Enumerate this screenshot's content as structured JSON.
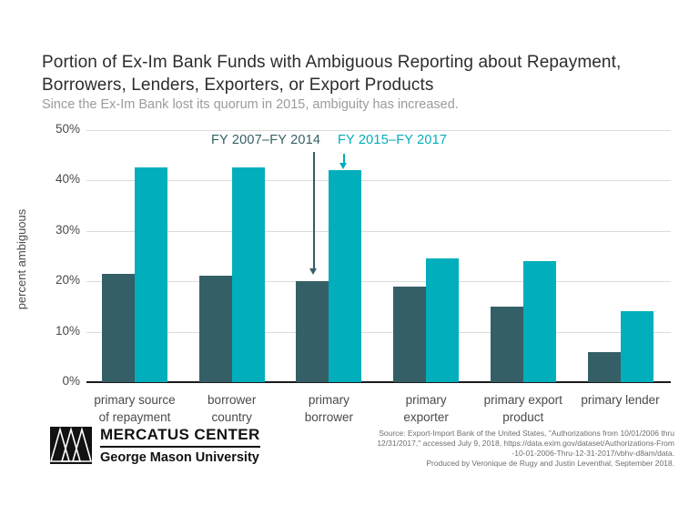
{
  "chart_data": {
    "type": "bar",
    "title": "Portion of Ex-Im Bank Funds with Ambiguous Reporting about Repayment,\nBorrowers, Lenders, Exporters, or Export Products",
    "subtitle": "Since the Ex-Im Bank lost its quorum in 2015, ambiguity has increased.",
    "ylabel": "percent ambiguous",
    "xlabel": "",
    "ylim": [
      0,
      50
    ],
    "ytick_values": [
      0,
      10,
      20,
      30,
      40,
      50
    ],
    "ytick_labels": [
      "0%",
      "10%",
      "20%",
      "30%",
      "40%",
      "50%"
    ],
    "grid": true,
    "legend_position": "annotations above plot with arrows pointing to the primary borrower bars",
    "categories": [
      "primary source\nof repayment",
      "borrower\ncountry",
      "primary\nborrower",
      "primary\nexporter",
      "primary export\nproduct",
      "primary lender"
    ],
    "series": [
      {
        "name": "FY 2007–FY 2014",
        "color": "#355F66",
        "values": [
          21.5,
          21,
          20,
          19,
          15,
          6
        ]
      },
      {
        "name": "FY 2015–FY 2017",
        "color": "#00AEBC",
        "values": [
          42.5,
          42.5,
          42,
          24.5,
          24,
          14
        ]
      }
    ]
  },
  "colors": {
    "axis_line": "#1A1A1A",
    "gridline": "#DCDCDC",
    "title_text": "#2D2D2D",
    "subtitle_text": "#9B9B9B",
    "axis_text": "#4A4A4A",
    "source_text": "#6E6E6E"
  },
  "footer": {
    "logo": {
      "name": "MERCATUS CENTER",
      "subname": "George Mason University"
    },
    "source_text": "Source: Export-Import Bank of the United States, \"Authorizations from 10/01/2006 thru\n12/31/2017,\" accessed July 9, 2018, https://data.exim.gov/dataset/Authorizations-From\n-10-01-2006-Thru-12-31-2017/vbhv-d8am/data.\nProduced by Veronique de Rugy and Justin Leventhal, September 2018."
  }
}
